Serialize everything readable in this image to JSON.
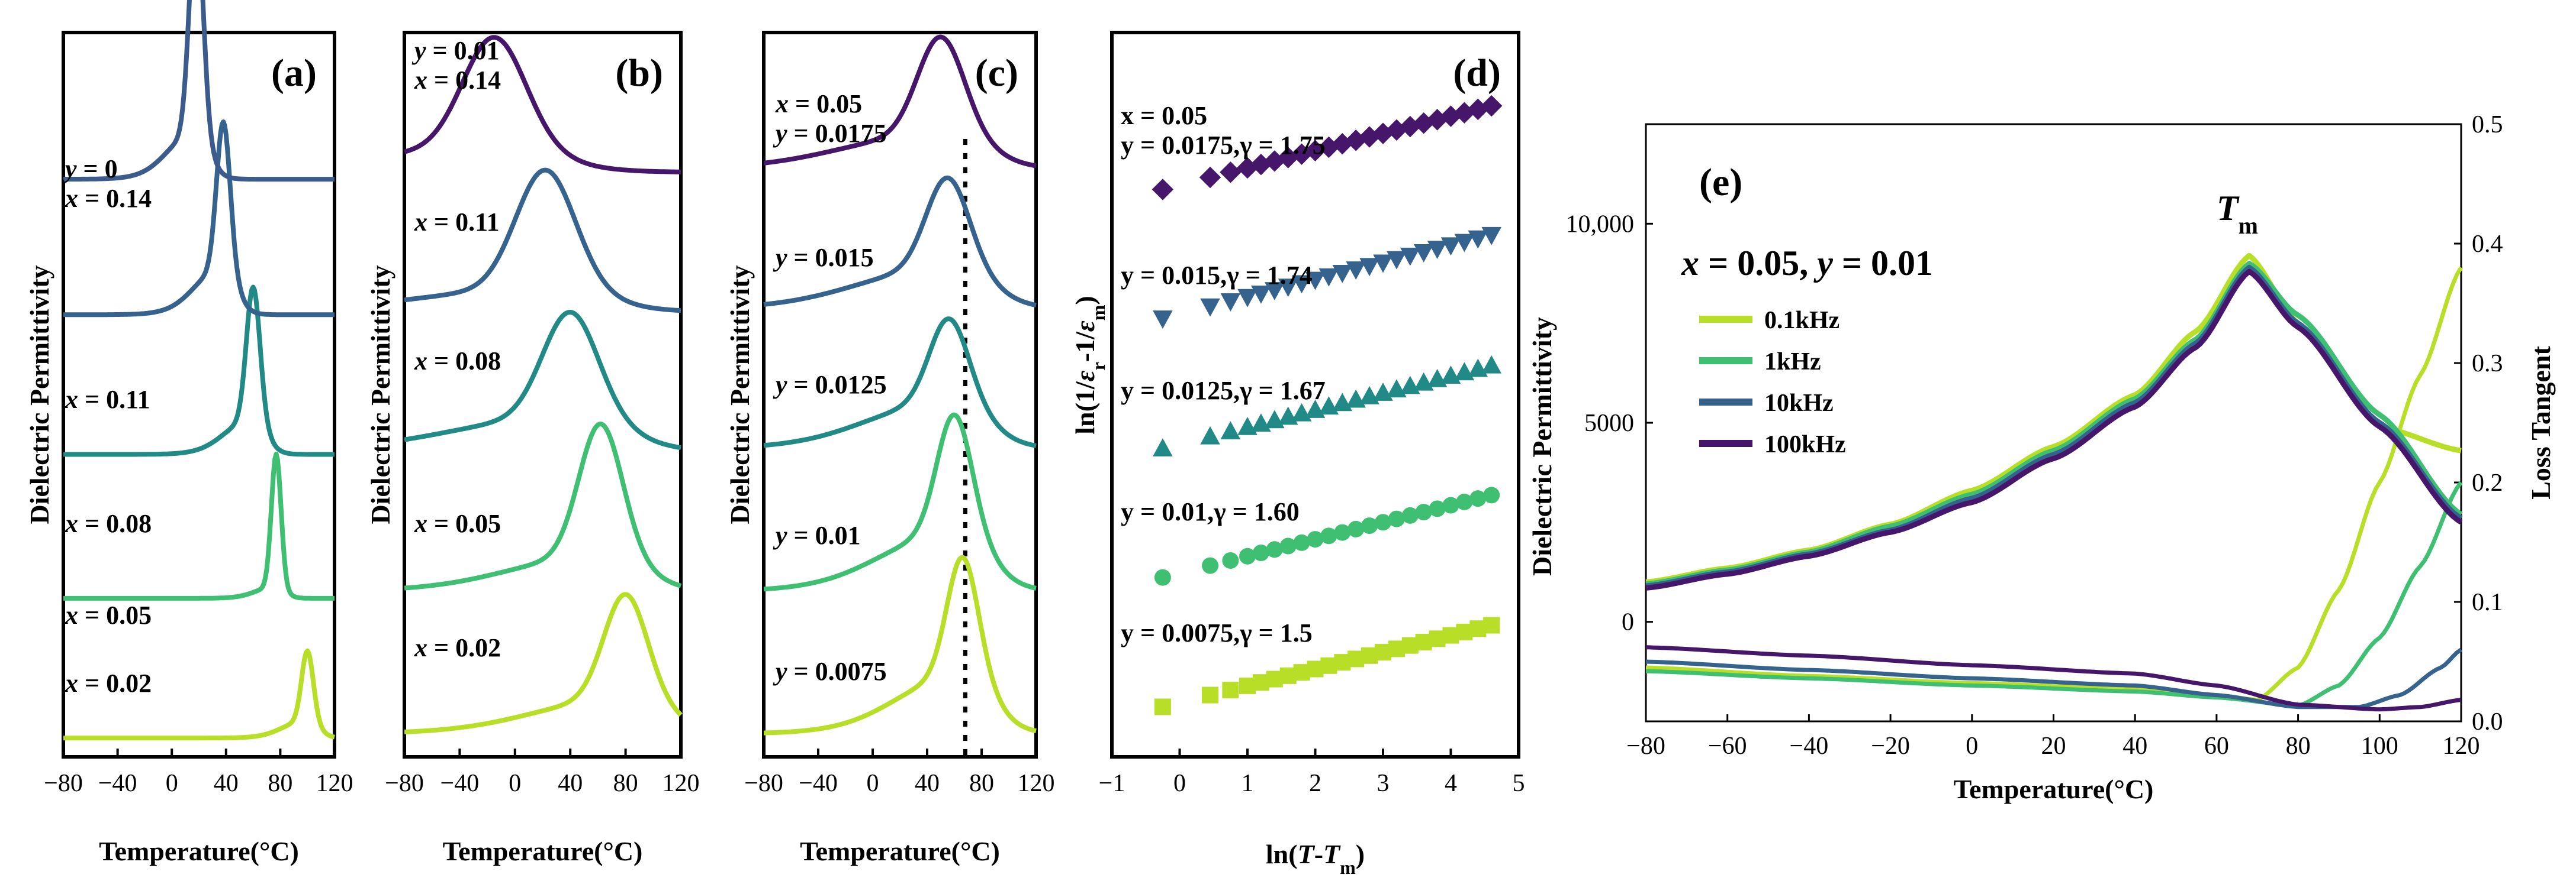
{
  "colors": {
    "dark_purple": "#46166b",
    "blue_slate": "#3c5b8d",
    "blue": "#35638e",
    "teal": "#218a86",
    "green": "#3fbf72",
    "lime": "#b9de28",
    "light_green": "#8fd744",
    "dotted_line": "#000000"
  },
  "chart_data": [
    {
      "panel": "a",
      "type": "line",
      "tag": "(a)",
      "xlabel": "Temperature(°C)",
      "ylabel": "Dielectric Permittivity",
      "xlim": [
        -80,
        120
      ],
      "xticks": [
        "−80",
        "−40",
        "0",
        "40",
        "80",
        "120"
      ],
      "xtick_values": [
        -80,
        -40,
        0,
        40,
        80,
        120
      ],
      "offset_ylim": [
        0,
        5.1
      ],
      "series": [
        {
          "name": "x = 0.02",
          "label": "x = 0.02",
          "color": "#b9de28",
          "offset": 0.0,
          "peak": 100,
          "width": 6,
          "height": 0.5,
          "base": 0.05,
          "dip": 0.15
        },
        {
          "name": "x = 0.05",
          "label": "x = 0.05",
          "color": "#3fbf72",
          "offset": 1.0,
          "peak": 77,
          "width": 5,
          "height": 0.95,
          "base": 0.05,
          "dip": 0.1
        },
        {
          "name": "x = 0.08",
          "label": "x = 0.08",
          "color": "#218a86",
          "offset": 2.0,
          "peak": 60,
          "width": 7,
          "height": 0.95,
          "base": 0.08,
          "dip": 0.3
        },
        {
          "name": "x = 0.11",
          "label": "x = 0.11",
          "color": "#35638e",
          "offset": 3.0,
          "peak": 38,
          "width": 7,
          "height": 1.05,
          "base": 0.08,
          "dip": 0.4
        },
        {
          "name": "x = 0.14",
          "label_lines": [
            "y = 0",
            "x = 0.14"
          ],
          "color": "#3c5b8d",
          "offset": 4.0,
          "peak": 18,
          "width": 7,
          "height": 1.6,
          "base": 0.05,
          "dip": 0.4
        }
      ]
    },
    {
      "panel": "b",
      "type": "line",
      "tag": "(b)",
      "xlabel": "Temperature(°C)",
      "ylabel": "Dielectric Permittivity",
      "xlim": [
        -80,
        120
      ],
      "xticks": [
        "−80",
        "−40",
        "0",
        "40",
        "80",
        "120"
      ],
      "xtick_values": [
        -80,
        -40,
        0,
        40,
        80,
        120
      ],
      "offset_ylim": [
        0,
        5.1
      ],
      "series": [
        {
          "name": "x = 0.02",
          "label": "x = 0.02",
          "color": "#b9de28",
          "offset": 0.0,
          "peak": 80,
          "width": 22,
          "height": 0.75,
          "base": 0.08,
          "dip": 0.3
        },
        {
          "name": "x = 0.05",
          "label": "x = 0.05",
          "color": "#3fbf72",
          "offset": 1.0,
          "peak": 62,
          "width": 22,
          "height": 0.95,
          "base": 0.1,
          "dip": 0.3
        },
        {
          "name": "x = 0.08",
          "label": "x = 0.08",
          "color": "#218a86",
          "offset": 2.0,
          "peak": 40,
          "width": 28,
          "height": 0.75,
          "base": 0.1,
          "dip": 0.3
        },
        {
          "name": "x = 0.11",
          "label": "x = 0.11",
          "color": "#35638e",
          "offset": 3.0,
          "peak": 22,
          "width": 30,
          "height": 0.85,
          "base": 0.1,
          "dip": 0.2
        },
        {
          "name": "x = 0.14",
          "label_lines": [
            "y = 0.01",
            "x = 0.14"
          ],
          "color": "#46166b",
          "offset": 4.0,
          "peak": -15,
          "width": 32,
          "height": 0.8,
          "base": 0.1,
          "dip": 0.2
        }
      ]
    },
    {
      "panel": "c",
      "type": "line",
      "tag": "(c)",
      "xlabel": "Temperature(°C)",
      "ylabel": "Dielectric Permittivity",
      "xlim": [
        -80,
        120
      ],
      "xticks": [
        "−80",
        "−40",
        "0",
        "40",
        "80",
        "120"
      ],
      "xtick_values": [
        -80,
        -40,
        0,
        40,
        80,
        120
      ],
      "offset_ylim": [
        0,
        5.1
      ],
      "dotted_x": 68,
      "series": [
        {
          "name": "y = 0.0075",
          "label": "y = 0.0075",
          "color": "#b9de28",
          "offset": 0.0,
          "peak": 66,
          "width": 16,
          "height": 0.85,
          "base": 0.08,
          "dip": 0.5
        },
        {
          "name": "y = 0.01",
          "label": "y = 0.01",
          "color": "#3fbf72",
          "offset": 1.0,
          "peak": 60,
          "width": 18,
          "height": 0.85,
          "base": 0.1,
          "dip": 0.5
        },
        {
          "name": "y = 0.0125",
          "label": "y = 0.0125",
          "color": "#218a86",
          "offset": 2.0,
          "peak": 56,
          "width": 20,
          "height": 0.6,
          "base": 0.12,
          "dip": 0.4
        },
        {
          "name": "y = 0.015",
          "label": "y = 0.015",
          "color": "#35638e",
          "offset": 3.0,
          "peak": 55,
          "width": 22,
          "height": 0.65,
          "base": 0.12,
          "dip": 0.35
        },
        {
          "name": "y = 0.0175",
          "label_lines": [
            "x = 0.05",
            "y = 0.0175"
          ],
          "color": "#46166b",
          "offset": 4.0,
          "peak": 50,
          "width": 24,
          "height": 0.7,
          "base": 0.12,
          "dip": 0.3
        }
      ]
    },
    {
      "panel": "d",
      "type": "scatter",
      "tag": "(d)",
      "xlabel_parts": [
        "ln(",
        "T",
        "-",
        "T",
        "m",
        ")"
      ],
      "ylabel_parts": [
        "ln(1/",
        "ε",
        "r",
        "-1/",
        "ε",
        "m",
        ")"
      ],
      "xlim": [
        -1,
        5
      ],
      "xticks": [
        "−1",
        "0",
        "1",
        "2",
        "3",
        "4",
        "5"
      ],
      "xtick_values": [
        -1,
        0,
        1,
        2,
        3,
        4,
        5
      ],
      "offset_ylim": [
        -0.3,
        5.3
      ],
      "series": [
        {
          "name": "y = 0.0075",
          "label": "y = 0.0075,γ = 1.5",
          "gamma": 1.5,
          "marker": "square",
          "color": "#b9de28",
          "offset": 0.0,
          "x": [
            -0.25,
            0.45,
            0.75,
            1.0,
            1.2,
            1.4,
            1.6,
            1.8,
            2.0,
            2.2,
            2.4,
            2.6,
            2.8,
            3.0,
            3.2,
            3.4,
            3.6,
            3.8,
            4.0,
            4.2,
            4.4,
            4.6
          ]
        },
        {
          "name": "y = 0.01",
          "label": "y = 0.01,γ = 1.60",
          "gamma": 1.6,
          "marker": "circle",
          "color": "#3fbf72",
          "offset": 1.0,
          "x": [
            -0.25,
            0.45,
            0.75,
            1.0,
            1.2,
            1.4,
            1.6,
            1.8,
            2.0,
            2.2,
            2.4,
            2.6,
            2.8,
            3.0,
            3.2,
            3.4,
            3.6,
            3.8,
            4.0,
            4.2,
            4.4,
            4.6
          ]
        },
        {
          "name": "y = 0.0125",
          "label": "y = 0.0125,γ = 1.67",
          "gamma": 1.67,
          "marker": "triangle-up",
          "color": "#218a86",
          "offset": 2.0,
          "x": [
            -0.25,
            0.45,
            0.75,
            1.0,
            1.2,
            1.4,
            1.6,
            1.8,
            2.0,
            2.2,
            2.4,
            2.6,
            2.8,
            3.0,
            3.2,
            3.4,
            3.6,
            3.8,
            4.0,
            4.2,
            4.4,
            4.6
          ]
        },
        {
          "name": "y = 0.015",
          "label": "y = 0.015,γ = 1.74",
          "gamma": 1.74,
          "marker": "triangle-down",
          "color": "#35638e",
          "offset": 3.0,
          "x": [
            -0.25,
            0.45,
            0.75,
            1.0,
            1.2,
            1.4,
            1.6,
            1.8,
            2.0,
            2.2,
            2.4,
            2.6,
            2.8,
            3.0,
            3.2,
            3.4,
            3.6,
            3.8,
            4.0,
            4.2,
            4.4,
            4.6
          ]
        },
        {
          "name": "y = 0.0175",
          "label_lines": [
            "x = 0.05",
            "y = 0.0175,γ = 1.75"
          ],
          "gamma": 1.75,
          "marker": "diamond",
          "color": "#46166b",
          "offset": 4.0,
          "x": [
            -0.25,
            0.45,
            0.75,
            1.0,
            1.2,
            1.4,
            1.6,
            1.8,
            2.0,
            2.2,
            2.4,
            2.6,
            2.8,
            3.0,
            3.2,
            3.4,
            3.6,
            3.8,
            4.0,
            4.2,
            4.4,
            4.6
          ]
        }
      ]
    },
    {
      "panel": "e",
      "type": "line",
      "tag": "(e)",
      "xlabel": "Temperature(°C)",
      "ylabel": "Dielectric Permittivity",
      "y2label": "Loss Tangent",
      "xlim": [
        -80,
        120
      ],
      "xticks": [
        "−80",
        "−60",
        "−40",
        "−20",
        "0",
        "20",
        "40",
        "60",
        "80",
        "100",
        "120"
      ],
      "xtick_values": [
        -80,
        -60,
        -40,
        -20,
        0,
        20,
        40,
        60,
        80,
        100,
        120
      ],
      "ylim": [
        -2500,
        12500
      ],
      "yticks": [
        "0",
        "5000",
        "10,000"
      ],
      "ytick_values": [
        0,
        5000,
        10000
      ],
      "y2lim": [
        0,
        0.5
      ],
      "y2ticks": [
        "0.0",
        "0.1",
        "0.2",
        "0.3",
        "0.4",
        "0.5"
      ],
      "y2tick_values": [
        0,
        0.1,
        0.2,
        0.3,
        0.4,
        0.5
      ],
      "composition_label": "x = 0.05, y = 0.01",
      "tm_label": "T",
      "tm_sub": "m",
      "series": [
        {
          "name": "0.1kHz",
          "color": "#b9de28",
          "eps": [
            [
              -80,
              1000
            ],
            [
              -60,
              1350
            ],
            [
              -40,
              1800
            ],
            [
              -20,
              2450
            ],
            [
              0,
              3300
            ],
            [
              20,
              4400
            ],
            [
              40,
              5700
            ],
            [
              55,
              7300
            ],
            [
              68,
              9200
            ],
            [
              80,
              7500
            ],
            [
              100,
              4900
            ],
            [
              120,
              4300
            ]
          ],
          "tan": [
            [
              -80,
              0.045
            ],
            [
              -40,
              0.038
            ],
            [
              0,
              0.032
            ],
            [
              40,
              0.027
            ],
            [
              60,
              0.022
            ],
            [
              70,
              0.018
            ],
            [
              80,
              0.045
            ],
            [
              90,
              0.11
            ],
            [
              100,
              0.2
            ],
            [
              110,
              0.29
            ],
            [
              120,
              0.38
            ]
          ]
        },
        {
          "name": "1kHz",
          "color": "#3fbf72",
          "eps": [
            [
              -80,
              950
            ],
            [
              -60,
              1300
            ],
            [
              -40,
              1750
            ],
            [
              -20,
              2400
            ],
            [
              0,
              3200
            ],
            [
              20,
              4300
            ],
            [
              40,
              5600
            ],
            [
              55,
              7100
            ],
            [
              68,
              9000
            ],
            [
              80,
              7700
            ],
            [
              100,
              5200
            ],
            [
              120,
              2700
            ]
          ],
          "tan": [
            [
              -80,
              0.042
            ],
            [
              -40,
              0.036
            ],
            [
              0,
              0.03
            ],
            [
              40,
              0.025
            ],
            [
              60,
              0.02
            ],
            [
              80,
              0.013
            ],
            [
              90,
              0.03
            ],
            [
              100,
              0.07
            ],
            [
              110,
              0.13
            ],
            [
              120,
              0.2
            ]
          ]
        },
        {
          "name": "10kHz",
          "color": "#35638e",
          "eps": [
            [
              -80,
              900
            ],
            [
              -60,
              1250
            ],
            [
              -40,
              1700
            ],
            [
              -20,
              2300
            ],
            [
              0,
              3100
            ],
            [
              20,
              4200
            ],
            [
              40,
              5500
            ],
            [
              55,
              7000
            ],
            [
              68,
              8900
            ],
            [
              80,
              7500
            ],
            [
              100,
              5000
            ],
            [
              120,
              2600
            ]
          ],
          "tan": [
            [
              -80,
              0.05
            ],
            [
              -40,
              0.043
            ],
            [
              0,
              0.036
            ],
            [
              40,
              0.03
            ],
            [
              60,
              0.022
            ],
            [
              80,
              0.012
            ],
            [
              95,
              0.012
            ],
            [
              105,
              0.022
            ],
            [
              115,
              0.045
            ],
            [
              120,
              0.06
            ]
          ]
        },
        {
          "name": "100kHz",
          "color": "#46166b",
          "eps": [
            [
              -80,
              850
            ],
            [
              -60,
              1200
            ],
            [
              -40,
              1650
            ],
            [
              -20,
              2250
            ],
            [
              0,
              3000
            ],
            [
              20,
              4100
            ],
            [
              40,
              5400
            ],
            [
              55,
              6900
            ],
            [
              68,
              8800
            ],
            [
              80,
              7400
            ],
            [
              100,
              4900
            ],
            [
              120,
              2500
            ]
          ],
          "tan": [
            [
              -80,
              0.062
            ],
            [
              -40,
              0.055
            ],
            [
              0,
              0.047
            ],
            [
              40,
              0.04
            ],
            [
              60,
              0.03
            ],
            [
              80,
              0.014
            ],
            [
              100,
              0.01
            ],
            [
              110,
              0.012
            ],
            [
              120,
              0.018
            ]
          ]
        }
      ]
    }
  ]
}
